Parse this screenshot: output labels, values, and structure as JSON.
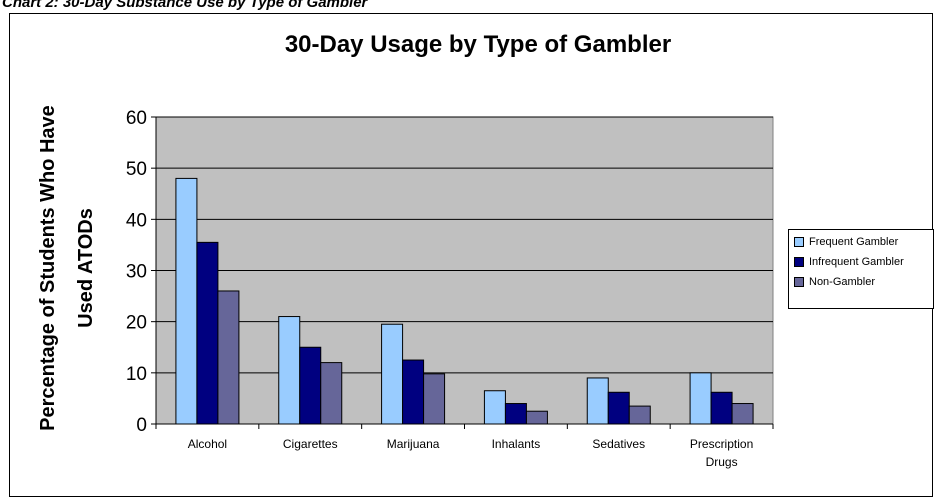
{
  "caption": "Chart 2: 30-Day Substance Use by Type of Gambler",
  "chart_data": {
    "type": "bar",
    "title": "30-Day Usage by Type of Gambler",
    "ylabel_lines": [
      "Percentage of Students Who Have",
      "Used ATODs"
    ],
    "xlabel": "",
    "ylim": [
      0,
      60
    ],
    "yticks": [
      0,
      10,
      20,
      30,
      40,
      50,
      60
    ],
    "categories": [
      [
        "Alcohol"
      ],
      [
        "Cigarettes"
      ],
      [
        "Marijuana"
      ],
      [
        "Inhalants"
      ],
      [
        "Sedatives"
      ],
      [
        "Prescription",
        "Drugs"
      ]
    ],
    "series": [
      {
        "name": "Frequent Gambler",
        "color": "#99CCFF",
        "values": [
          48,
          21,
          19.5,
          6.5,
          9,
          10
        ]
      },
      {
        "name": "Infrequent Gambler",
        "color": "#000080",
        "values": [
          35.5,
          15,
          12.5,
          4,
          6.2,
          6.2
        ]
      },
      {
        "name": "Non-Gambler",
        "color": "#666699",
        "values": [
          26,
          12,
          9.8,
          2.5,
          3.5,
          4
        ]
      }
    ],
    "plot_background": "#C0C0C0",
    "grid": true,
    "legend_position": "right"
  }
}
